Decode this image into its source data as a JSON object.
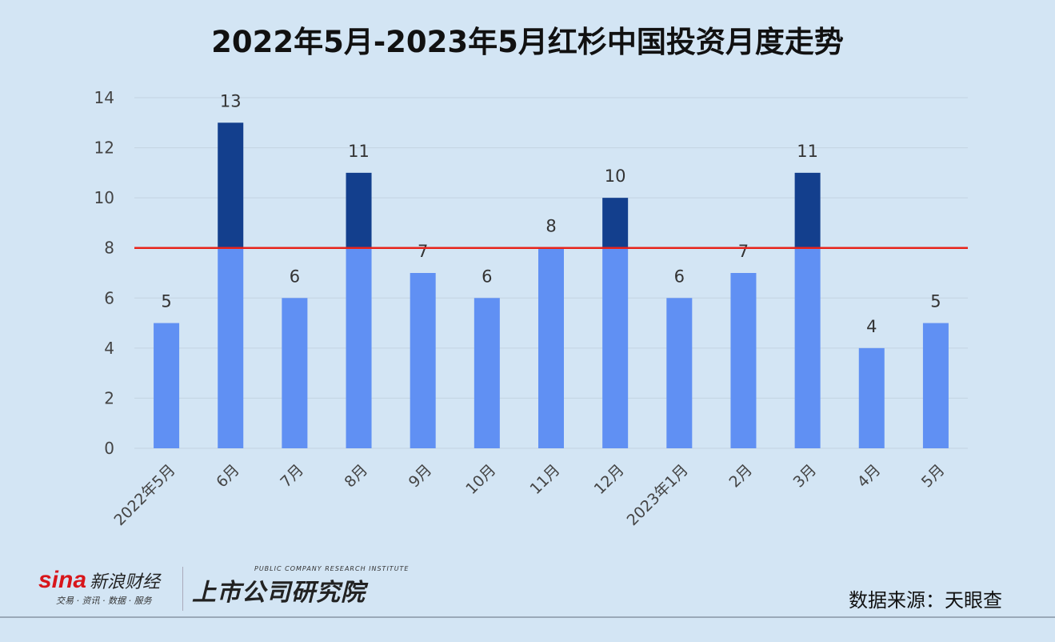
{
  "chart_data": {
    "type": "bar",
    "title": "2022年5月-2023年5月红杉中国投资月度走势",
    "categories": [
      "2022年5月",
      "6月",
      "7月",
      "8月",
      "9月",
      "10月",
      "11月",
      "12月",
      "2023年1月",
      "2月",
      "3月",
      "4月",
      "5月"
    ],
    "values": [
      5,
      13,
      6,
      11,
      7,
      6,
      8,
      10,
      6,
      7,
      11,
      4,
      5
    ],
    "ylim": [
      0,
      14
    ],
    "yticks": [
      0,
      2,
      4,
      6,
      8,
      10,
      12,
      14
    ],
    "grid": true,
    "reference_line": 8,
    "colors": {
      "below": "#6090f3",
      "above": "#133f8d",
      "reference_line": "#e8231a"
    }
  },
  "footer": {
    "sina_logo": "sina",
    "sina_name": "新浪财经",
    "sina_tagline": "交易 · 资讯 · 数据 · 服务",
    "institute_en": "PUBLIC COMPANY RESEARCH INSTITUTE",
    "institute_cn": "上市公司研究院",
    "source": "数据来源：天眼查"
  }
}
